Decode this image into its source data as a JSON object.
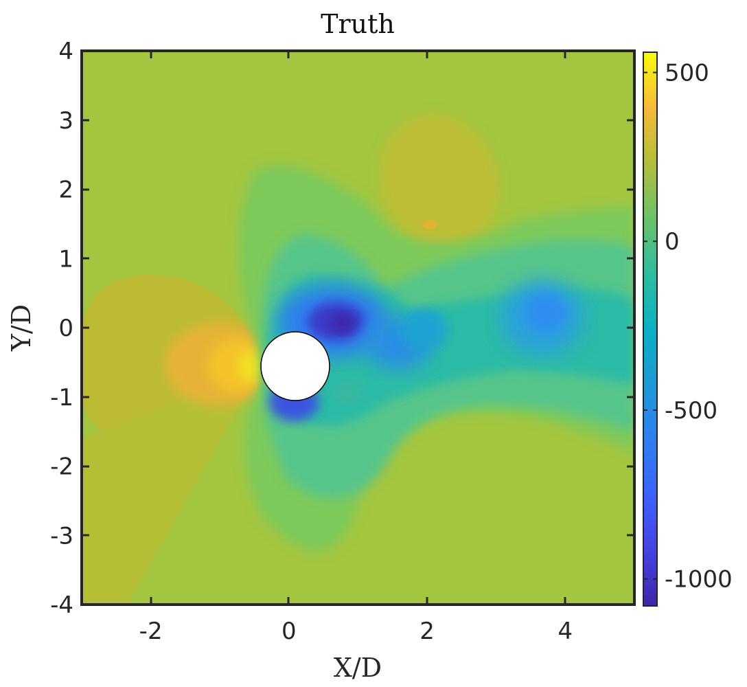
{
  "chart_data": {
    "type": "heatmap",
    "title": "Truth",
    "xlabel": "X/D",
    "ylabel": "Y/D",
    "xlim": [
      -3,
      5
    ],
    "ylim": [
      -4,
      4
    ],
    "x_ticks": [
      -2,
      0,
      2,
      4
    ],
    "y_ticks": [
      -4,
      -3,
      -2,
      -1,
      0,
      1,
      2,
      3,
      4
    ],
    "colorbar": {
      "range": [
        -1080,
        560
      ],
      "ticks": [
        -1000,
        -500,
        0,
        500
      ],
      "colormap": "parula"
    },
    "cylinder": {
      "center": [
        0.05,
        -0.55
      ],
      "diameter": 1.0
    },
    "field_features": [
      {
        "x": -3.0,
        "y": 0.0,
        "value": 0
      },
      {
        "x": -2.0,
        "y": -0.5,
        "value": 160
      },
      {
        "x": -0.9,
        "y": -0.5,
        "value": 300
      },
      {
        "x": -0.6,
        "y": -0.5,
        "value": 460
      },
      {
        "x": 2.4,
        "y": 2.0,
        "value": 110
      },
      {
        "x": 2.05,
        "y": 1.5,
        "value": 220
      },
      {
        "x": 0.8,
        "y": 0.05,
        "value": -1050
      },
      {
        "x": 0.5,
        "y": -1.05,
        "value": -850
      },
      {
        "x": 1.55,
        "y": -0.25,
        "value": -620
      },
      {
        "x": 2.1,
        "y": -0.05,
        "value": -450
      },
      {
        "x": 3.75,
        "y": 0.2,
        "value": -580
      },
      {
        "x": 1.0,
        "y": -2.2,
        "value": -100
      },
      {
        "x": 0.5,
        "y": 1.5,
        "value": -100
      }
    ],
    "colors": {
      "background_field": "#a3c53f",
      "min": "#3e26a8",
      "zero": "#87c957",
      "max": "#f9fb0e"
    }
  }
}
